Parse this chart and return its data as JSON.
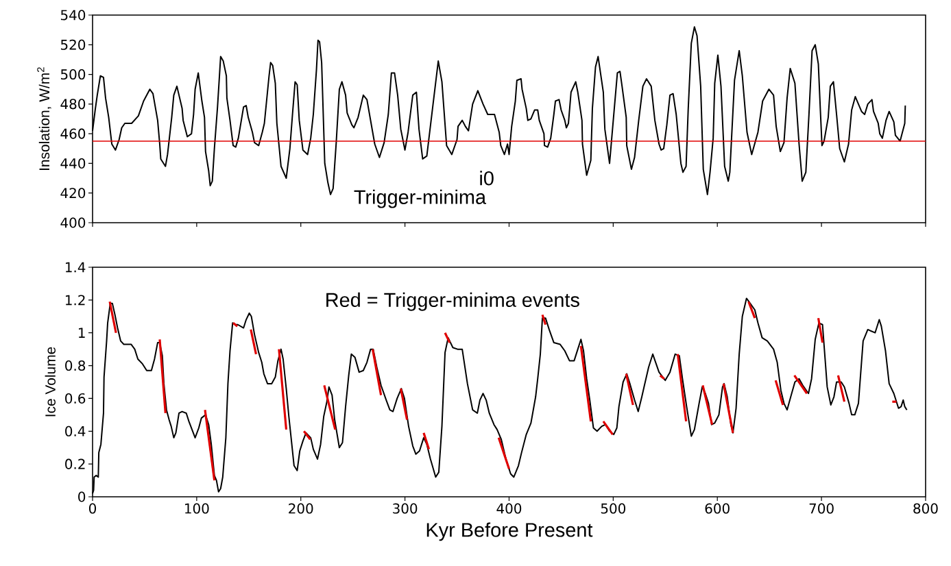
{
  "chart_data": [
    {
      "type": "line",
      "ylabel": "Insolation, W/m$^{2}$",
      "xlim": [
        0,
        800
      ],
      "ylim": [
        400,
        540
      ],
      "xticks": [
        0,
        100,
        200,
        300,
        400,
        500,
        600,
        700,
        800
      ],
      "yticks": [
        400,
        420,
        440,
        460,
        480,
        500,
        520,
        540
      ],
      "tick_labels": "y",
      "ref_lines": [
        {
          "axis": "y",
          "value": 455,
          "label": "i0",
          "color": "#e00000"
        }
      ],
      "annotations": [
        "Trigger-minima"
      ],
      "series": [
        {
          "color": "#000000",
          "x": [
            0,
            2.5,
            4.5,
            7.5,
            10.5,
            12.5,
            15.5,
            17.5,
            18.5,
            22,
            25.5,
            28,
            31,
            37.5,
            44,
            49,
            55,
            58,
            62.5,
            64.5,
            65.5,
            70,
            72,
            76,
            78,
            81,
            86,
            87,
            91,
            95,
            97,
            98.5,
            101.5,
            105,
            107.5,
            108.5,
            111.5,
            113,
            115,
            117,
            120,
            123,
            125.5,
            128.5,
            129,
            132,
            135,
            137.5,
            140,
            145,
            147.5,
            149.5,
            153.5,
            155.5,
            159.5,
            163,
            165,
            169.5,
            171,
            173,
            175.5,
            177,
            181,
            186,
            189.5,
            192,
            194.5,
            196.5,
            198.5,
            202,
            206.5,
            209.5,
            212,
            215,
            216.5,
            218,
            220,
            223,
            226,
            228.5,
            231,
            234,
            237,
            239.5,
            243,
            244.5,
            249,
            251,
            255,
            260,
            263.5,
            269,
            271,
            275.5,
            280,
            284,
            287,
            290,
            293,
            296,
            300,
            303,
            307.5,
            311,
            313.5,
            317,
            321,
            327,
            332,
            335.5,
            340,
            345,
            350,
            351,
            355,
            358,
            361,
            365,
            370,
            375,
            379.5,
            386,
            390.5,
            392,
            395.5,
            398.5,
            400,
            402.5,
            406,
            407.5,
            411.5,
            412.5,
            416.5,
            418,
            421,
            424.5,
            427.5,
            429,
            433.5,
            434,
            437,
            440,
            443,
            444.5,
            448,
            450,
            453.5,
            455,
            457,
            459.5,
            464,
            466,
            470,
            470.5,
            474.5,
            478.5,
            480,
            483,
            485.5,
            490.5,
            492,
            496.5,
            504,
            506.5,
            508.5,
            512.5,
            513,
            517.5,
            520.5,
            524.5,
            528.5,
            532,
            536.5,
            540,
            544,
            546,
            548.5,
            551.5,
            554.5,
            557.5,
            560.5,
            565,
            567,
            570,
            572,
            575,
            578,
            580.5,
            584,
            586.5,
            590.5,
            593,
            596,
            597.5,
            600.5,
            603.5,
            607,
            610.5,
            612,
            616.5,
            621,
            624,
            628.5,
            633,
            639,
            643.5,
            649.5,
            654,
            656.5,
            660.5,
            664,
            667,
            670,
            674.5,
            678.5,
            681.5,
            685,
            688,
            691,
            694,
            697,
            699,
            700.5,
            702.5,
            706.5,
            708.5,
            711.5,
            714.5,
            717.5,
            722,
            726,
            729,
            732.5,
            738.5,
            741.5,
            744.5,
            748.5,
            750,
            754.5,
            756,
            758.5,
            762,
            765,
            769.5,
            771,
            775.5,
            780,
            780.5
          ],
          "values": [
            462,
            476,
            486,
            499,
            498,
            484,
            471,
            459,
            453,
            449,
            456,
            464,
            467,
            467,
            472,
            482,
            490,
            487,
            469,
            453,
            443,
            438,
            446,
            471,
            486,
            492,
            477,
            469,
            458,
            460,
            473,
            490,
            501,
            482,
            471,
            448,
            435,
            425,
            428,
            450,
            478,
            512,
            509,
            499,
            484,
            469,
            452,
            451,
            457,
            478,
            479,
            471,
            461,
            454,
            452,
            461,
            467,
            499,
            508,
            506,
            494,
            467,
            438,
            430,
            450,
            473,
            495,
            493,
            469,
            449,
            446,
            457,
            473,
            503,
            523,
            522,
            508,
            440,
            427,
            419,
            423,
            454,
            490,
            495,
            486,
            474,
            466,
            464,
            471,
            486,
            483,
            461,
            453,
            444,
            454,
            473,
            501,
            501,
            486,
            463,
            449,
            461,
            486,
            488,
            463,
            443,
            445,
            480,
            509,
            495,
            452,
            446,
            456,
            465,
            469,
            465,
            462,
            480,
            489,
            480,
            473,
            473,
            461,
            452,
            446,
            453,
            446,
            465,
            482,
            496,
            497,
            490,
            477,
            469,
            470,
            476,
            476,
            469,
            460,
            452,
            451,
            457,
            473,
            482,
            483,
            476,
            469,
            464,
            467,
            488,
            495,
            488,
            469,
            453,
            432,
            442,
            477,
            505,
            512,
            488,
            463,
            440,
            501,
            502,
            492,
            471,
            452,
            436,
            444,
            469,
            492,
            497,
            492,
            469,
            453,
            449,
            450,
            466,
            486,
            487,
            473,
            440,
            434,
            438,
            476,
            521,
            532,
            526,
            492,
            436,
            419,
            434,
            457,
            494,
            513,
            492,
            438,
            428,
            434,
            496,
            516,
            499,
            461,
            446,
            461,
            482,
            490,
            486,
            465,
            448,
            454,
            484,
            504,
            494,
            453,
            428,
            434,
            473,
            516,
            520,
            507,
            475,
            452,
            455,
            471,
            492,
            495,
            473,
            450,
            441,
            453,
            476,
            485,
            475,
            473,
            480,
            483,
            475,
            467,
            460,
            457,
            469,
            475,
            468,
            459,
            455,
            467,
            479
          ]
        }
      ]
    },
    {
      "type": "line",
      "xlabel": "Kyr Before Present",
      "ylabel": "Ice Volume",
      "xlim": [
        0,
        800
      ],
      "ylim": [
        0,
        1.4
      ],
      "xticks": [
        0,
        100,
        200,
        300,
        400,
        500,
        600,
        700,
        800
      ],
      "yticks": [
        0,
        0.2,
        0.4,
        0.6,
        0.8,
        1,
        1.2,
        1.4
      ],
      "annotations": [
        "Red = Trigger-minima events"
      ],
      "series": [
        {
          "color": "#000000",
          "x": [
            0,
            1,
            1.5,
            3.5,
            5.5,
            6,
            8,
            10.5,
            11,
            13.5,
            14.5,
            17,
            19,
            21.5,
            24,
            27,
            30,
            37,
            40.5,
            43.5,
            48,
            52,
            56.5,
            59.5,
            62.5,
            64.5,
            67,
            68.5,
            71,
            73.5,
            75.5,
            78,
            80,
            83,
            86,
            90,
            92.5,
            95.5,
            98.5,
            102,
            104.5,
            108.5,
            111.5,
            114,
            117,
            119,
            121,
            123,
            125,
            128,
            130,
            132,
            134.5,
            137,
            139.5,
            145,
            147.5,
            150.5,
            152.5,
            155.5,
            159.5,
            162.5,
            164.5,
            168,
            172,
            175.5,
            178,
            181,
            183,
            186,
            188.5,
            191,
            193.5,
            196.5,
            199,
            202,
            205,
            209.5,
            212,
            216,
            219,
            222,
            225,
            227,
            230,
            232.5,
            237,
            240,
            243,
            246,
            248.5,
            252,
            256,
            260,
            263.5,
            267,
            269.5,
            273,
            277,
            282,
            285.5,
            288.5,
            292.5,
            296.5,
            299.5,
            303.5,
            307.5,
            310.5,
            314,
            318,
            321,
            324.5,
            329.5,
            332.5,
            335.5,
            338.5,
            341.5,
            346,
            350.5,
            355,
            360,
            365,
            369.5,
            372,
            375,
            378,
            381,
            385.5,
            388.5,
            392.5,
            397,
            401.5,
            404.5,
            409,
            412,
            416.5,
            421,
            425.5,
            427.5,
            430,
            432,
            435,
            438.5,
            443,
            449,
            453.5,
            458,
            462.5,
            466,
            469,
            471.5,
            474.5,
            477.5,
            481,
            484.5,
            489,
            492.5,
            496.5,
            500.5,
            503.5,
            505.5,
            509.5,
            513,
            516,
            520.5,
            524,
            527.5,
            530,
            534,
            538,
            544,
            550,
            554.5,
            559.5,
            563.5,
            566.5,
            570.5,
            575,
            578,
            582.5,
            585.5,
            588.5,
            591.5,
            594.5,
            597.5,
            601.5,
            605,
            606.5,
            609.5,
            613,
            615,
            618,
            621,
            624,
            628,
            631.5,
            636,
            639,
            643,
            648,
            654,
            657.5,
            661,
            664,
            667,
            670.5,
            674.5,
            678.5,
            682,
            687.5,
            690.5,
            694,
            697.5,
            701,
            703.5,
            705.5,
            709,
            712,
            714.5,
            719,
            722,
            726.5,
            729,
            732,
            735.5,
            740,
            744.5,
            751.5,
            755.5,
            757.5,
            761.5,
            765,
            769.5,
            774,
            776.5,
            778.5,
            780,
            782
          ],
          "values": [
            0.02,
            0.04,
            0.12,
            0.13,
            0.12,
            0.27,
            0.32,
            0.51,
            0.73,
            0.95,
            1.06,
            1.18,
            1.18,
            1.11,
            1.03,
            0.95,
            0.93,
            0.93,
            0.9,
            0.84,
            0.81,
            0.77,
            0.77,
            0.84,
            0.94,
            0.94,
            0.86,
            0.69,
            0.53,
            0.47,
            0.43,
            0.36,
            0.39,
            0.51,
            0.52,
            0.51,
            0.46,
            0.41,
            0.36,
            0.42,
            0.48,
            0.5,
            0.44,
            0.32,
            0.13,
            0.1,
            0.03,
            0.05,
            0.12,
            0.36,
            0.69,
            0.89,
            1.06,
            1.05,
            1.05,
            1.03,
            1.08,
            1.12,
            1.1,
            0.99,
            0.88,
            0.82,
            0.75,
            0.69,
            0.69,
            0.73,
            0.83,
            0.9,
            0.84,
            0.66,
            0.49,
            0.34,
            0.19,
            0.16,
            0.28,
            0.34,
            0.39,
            0.36,
            0.29,
            0.23,
            0.32,
            0.49,
            0.58,
            0.67,
            0.62,
            0.47,
            0.3,
            0.33,
            0.55,
            0.74,
            0.87,
            0.85,
            0.76,
            0.77,
            0.82,
            0.9,
            0.9,
            0.79,
            0.68,
            0.59,
            0.53,
            0.52,
            0.6,
            0.66,
            0.6,
            0.43,
            0.31,
            0.26,
            0.28,
            0.36,
            0.32,
            0.23,
            0.12,
            0.15,
            0.43,
            0.88,
            0.97,
            0.91,
            0.9,
            0.9,
            0.69,
            0.53,
            0.51,
            0.59,
            0.63,
            0.59,
            0.51,
            0.44,
            0.41,
            0.35,
            0.23,
            0.14,
            0.12,
            0.19,
            0.27,
            0.38,
            0.45,
            0.61,
            0.72,
            0.87,
            1.09,
            1.09,
            1.02,
            0.94,
            0.93,
            0.89,
            0.83,
            0.83,
            0.9,
            0.96,
            0.89,
            0.72,
            0.59,
            0.42,
            0.4,
            0.43,
            0.44,
            0.4,
            0.38,
            0.42,
            0.55,
            0.7,
            0.75,
            0.69,
            0.59,
            0.52,
            0.61,
            0.68,
            0.79,
            0.87,
            0.76,
            0.71,
            0.76,
            0.87,
            0.86,
            0.72,
            0.55,
            0.37,
            0.41,
            0.57,
            0.67,
            0.63,
            0.57,
            0.44,
            0.45,
            0.5,
            0.67,
            0.69,
            0.61,
            0.44,
            0.39,
            0.54,
            0.87,
            1.1,
            1.21,
            1.18,
            1.14,
            1.06,
            0.97,
            0.95,
            0.9,
            0.82,
            0.65,
            0.57,
            0.53,
            0.61,
            0.7,
            0.72,
            0.68,
            0.63,
            0.72,
            0.96,
            1.06,
            1.05,
            0.84,
            0.67,
            0.56,
            0.61,
            0.7,
            0.7,
            0.67,
            0.57,
            0.5,
            0.5,
            0.57,
            0.95,
            1.02,
            1.0,
            1.08,
            1.04,
            0.89,
            0.69,
            0.63,
            0.54,
            0.55,
            0.59,
            0.55,
            0.53
          ]
        },
        {
          "color": "#e00000",
          "x": [
            16.5,
            22.5
          ],
          "values": [
            1.19,
            1.0
          ]
        },
        {
          "color": "#e00000",
          "x": [
            64.5,
            70
          ],
          "values": [
            0.96,
            0.51
          ]
        },
        {
          "color": "#e00000",
          "x": [
            108,
            117
          ],
          "values": [
            0.53,
            0.1
          ]
        },
        {
          "color": "#e00000",
          "x": [
            135,
            139
          ],
          "values": [
            1.06,
            1.04
          ]
        },
        {
          "color": "#e00000",
          "x": [
            152,
            157
          ],
          "values": [
            1.02,
            0.87
          ]
        },
        {
          "color": "#e00000",
          "x": [
            179,
            186
          ],
          "values": [
            0.9,
            0.41
          ]
        },
        {
          "color": "#e00000",
          "x": [
            203,
            209
          ],
          "values": [
            0.4,
            0.35
          ]
        },
        {
          "color": "#e00000",
          "x": [
            222.5,
            233
          ],
          "values": [
            0.68,
            0.41
          ]
        },
        {
          "color": "#e00000",
          "x": [
            269,
            277
          ],
          "values": [
            0.9,
            0.62
          ]
        },
        {
          "color": "#e00000",
          "x": [
            296,
            302
          ],
          "values": [
            0.66,
            0.47
          ]
        },
        {
          "color": "#e00000",
          "x": [
            318,
            323
          ],
          "values": [
            0.39,
            0.29
          ]
        },
        {
          "color": "#e00000",
          "x": [
            338.5,
            343
          ],
          "values": [
            1.0,
            0.94
          ]
        },
        {
          "color": "#e00000",
          "x": [
            390,
            400
          ],
          "values": [
            0.36,
            0.17
          ]
        },
        {
          "color": "#e00000",
          "x": [
            432,
            435
          ],
          "values": [
            1.11,
            1.05
          ]
        },
        {
          "color": "#e00000",
          "x": [
            469,
            478.5
          ],
          "values": [
            0.92,
            0.46
          ]
        },
        {
          "color": "#e00000",
          "x": [
            490.5,
            499.5
          ],
          "values": [
            0.46,
            0.38
          ]
        },
        {
          "color": "#e00000",
          "x": [
            512.5,
            519
          ],
          "values": [
            0.75,
            0.56
          ]
        },
        {
          "color": "#e00000",
          "x": [
            545,
            549
          ],
          "values": [
            0.74,
            0.72
          ]
        },
        {
          "color": "#e00000",
          "x": [
            562,
            570
          ],
          "values": [
            0.87,
            0.46
          ]
        },
        {
          "color": "#e00000",
          "x": [
            586,
            595
          ],
          "values": [
            0.68,
            0.44
          ]
        },
        {
          "color": "#e00000",
          "x": [
            606,
            615
          ],
          "values": [
            0.69,
            0.39
          ]
        },
        {
          "color": "#e00000",
          "x": [
            630,
            636
          ],
          "values": [
            1.19,
            1.09
          ]
        },
        {
          "color": "#e00000",
          "x": [
            656,
            663
          ],
          "values": [
            0.71,
            0.56
          ]
        },
        {
          "color": "#e00000",
          "x": [
            674,
            686
          ],
          "values": [
            0.74,
            0.63
          ]
        },
        {
          "color": "#e00000",
          "x": [
            697,
            701
          ],
          "values": [
            1.09,
            0.94
          ]
        },
        {
          "color": "#e00000",
          "x": [
            716,
            722
          ],
          "values": [
            0.74,
            0.58
          ]
        },
        {
          "color": "#e00000",
          "x": [
            768,
            772
          ],
          "values": [
            0.58,
            0.58
          ]
        }
      ]
    }
  ]
}
